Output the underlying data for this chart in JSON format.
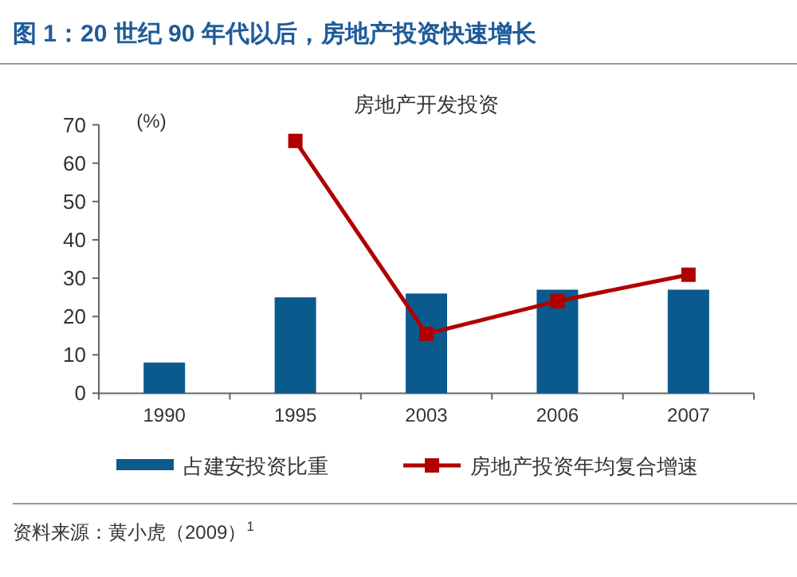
{
  "chart_data": {
    "type": "bar",
    "title": "图 1：20 世纪 90 年代以后，房地产投资快速增长",
    "subtitle": "房地产开发投资",
    "ylabel": "(%)",
    "categories": [
      "1990",
      "1995",
      "2003",
      "2006",
      "2007"
    ],
    "series": [
      {
        "name": "占建安投资比重",
        "color": "#0b5a8e",
        "values": [
          8,
          25,
          26,
          27,
          27
        ]
      },
      {
        "name": "房地产投资年均复合增速",
        "type": "line",
        "color": "#b00000",
        "values": [
          null,
          65.8,
          15.5,
          24,
          30.9
        ]
      }
    ],
    "marker": "square",
    "line_style": "solid",
    "ylim": [
      0,
      70
    ],
    "yticks": [
      0,
      10,
      20,
      30,
      40,
      50,
      60,
      70
    ],
    "legend": "bottom",
    "grid": false,
    "annotations": [
      "资料来源：黄小虎（2009）$^{1}$"
    ]
  }
}
